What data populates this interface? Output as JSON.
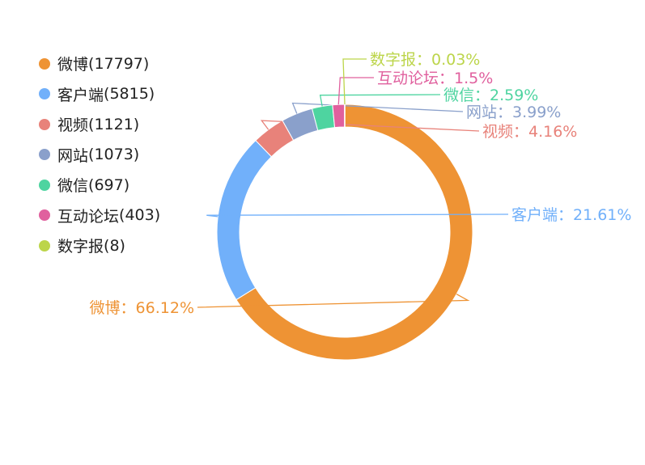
{
  "chart_data": {
    "type": "pie",
    "donut": true,
    "legend_position": "left",
    "series": [
      {
        "name": "微博",
        "count": 17797,
        "percent_label": "66.12%",
        "color": "#ee9334"
      },
      {
        "name": "客户端",
        "count": 5815,
        "percent_label": "21.61%",
        "color": "#71b0fa"
      },
      {
        "name": "视频",
        "count": 1121,
        "percent_label": "4.16%",
        "color": "#e8827a"
      },
      {
        "name": "网站",
        "count": 1073,
        "percent_label": "3.99%",
        "color": "#8aa0cb"
      },
      {
        "name": "微信",
        "count": 697,
        "percent_label": "2.59%",
        "color": "#4ed4a0"
      },
      {
        "name": "互动论坛",
        "count": 403,
        "percent_label": "1.5%",
        "color": "#e0609e"
      },
      {
        "name": "数字报",
        "count": 8,
        "percent_label": "0.03%",
        "color": "#bcd54a"
      }
    ]
  }
}
